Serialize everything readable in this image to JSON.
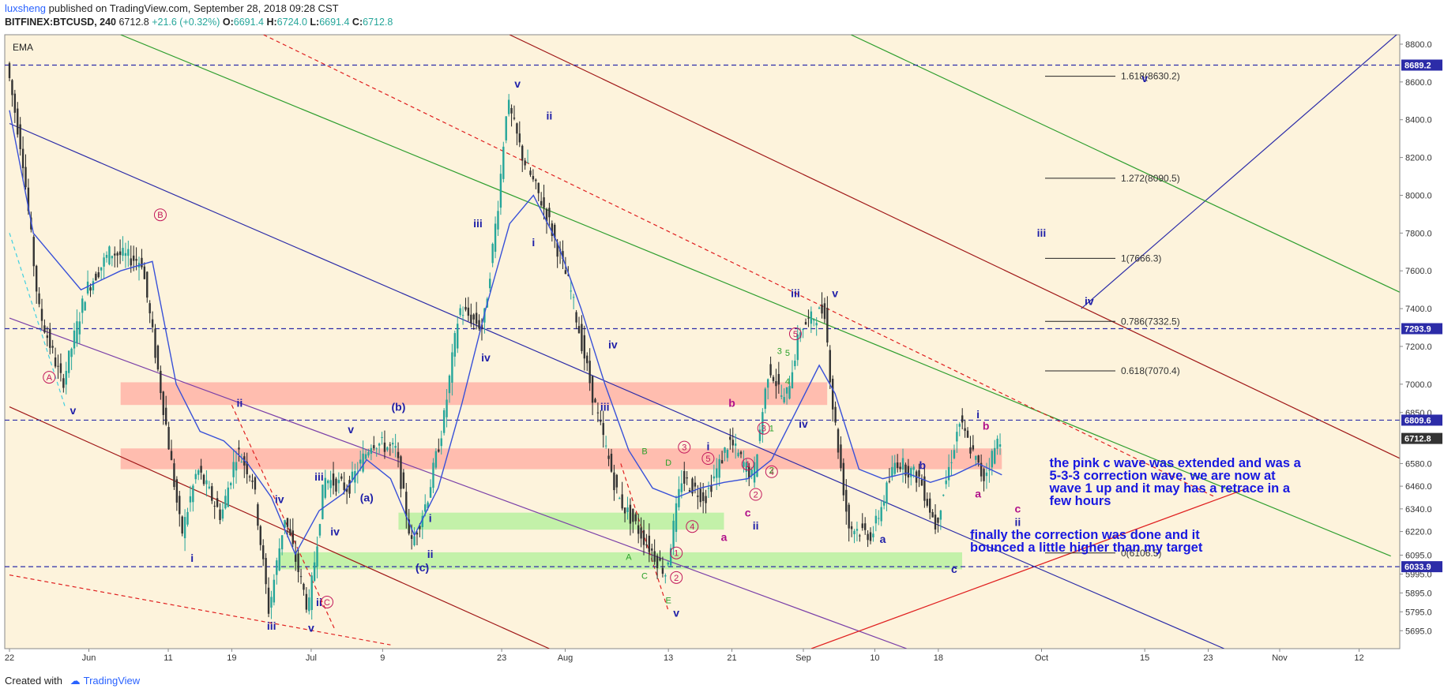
{
  "header": {
    "user": "luxsheng",
    "published": "published on TradingView.com, September 28, 2018 09:28 CST",
    "symbol": "BITFINEX:BTCUSD, 240",
    "last": "6712.8",
    "change": "+21.6 (+0.32%)",
    "o_label": "O:",
    "o": "6691.4",
    "h_label": "H:",
    "h": "6724.0",
    "l_label": "L:",
    "l": "6691.4",
    "c_label": "C:",
    "c": "6712.8"
  },
  "indicator": "EMA",
  "footer": {
    "created_with": "Created with",
    "brand": "TradingView"
  },
  "colors": {
    "background": "#fdf3dc",
    "price_up": "#26a69a",
    "ema": "#3850d8",
    "wave_label": "#1f1fa8",
    "pink": "#c2185b",
    "zone_red": "#ffb3a7",
    "zone_green": "#b8f0a0"
  },
  "chart_data": {
    "type": "candlestick",
    "title": "BITFINEX:BTCUSD, 240",
    "ylim": [
      5600,
      8850
    ],
    "x_ticks": [
      "22",
      "Jun",
      "11",
      "19",
      "Jul",
      "9",
      "23",
      "Aug",
      "13",
      "21",
      "Sep",
      "10",
      "18",
      "Oct",
      "15",
      "23",
      "Nov",
      "12"
    ],
    "x_tick_index": [
      0,
      10,
      20,
      28,
      38,
      47,
      62,
      70,
      83,
      91,
      100,
      109,
      117,
      130,
      143,
      151,
      160,
      170
    ],
    "y_ticks": [
      8800,
      8600,
      8400,
      8200,
      8000,
      7800,
      7600,
      7400,
      7200,
      7000,
      6850,
      6580,
      6460,
      6340,
      6220,
      6095,
      5995,
      5895,
      5795,
      5695
    ],
    "y_tick_labels": [
      "8800.0",
      "8600.0",
      "8400.0",
      "8200.0",
      "8000.0",
      "7800.0",
      "7600.0",
      "7400.0",
      "7200.0",
      "7000.0",
      "6850.0",
      "6580.0",
      "6460.0",
      "6340.0",
      "6220.0",
      "6095.0",
      "5995.0",
      "5895.0",
      "5795.0",
      "5695.0"
    ],
    "price_path": [
      [
        0,
        8700
      ],
      [
        2,
        8200
      ],
      [
        4,
        7400
      ],
      [
        7,
        7000
      ],
      [
        10,
        7500
      ],
      [
        13,
        7700
      ],
      [
        17,
        7650
      ],
      [
        20,
        6800
      ],
      [
        22,
        6200
      ],
      [
        24,
        6550
      ],
      [
        27,
        6300
      ],
      [
        29,
        6650
      ],
      [
        31,
        6500
      ],
      [
        33,
        5800
      ],
      [
        35,
        6300
      ],
      [
        38,
        5800
      ],
      [
        40,
        6500
      ],
      [
        43,
        6450
      ],
      [
        46,
        6700
      ],
      [
        49,
        6650
      ],
      [
        51,
        6150
      ],
      [
        53,
        6400
      ],
      [
        55,
        6800
      ],
      [
        57,
        7400
      ],
      [
        60,
        7300
      ],
      [
        62,
        8000
      ],
      [
        63,
        8500
      ],
      [
        65,
        8200
      ],
      [
        68,
        7900
      ],
      [
        71,
        7500
      ],
      [
        74,
        6900
      ],
      [
        77,
        6400
      ],
      [
        80,
        6200
      ],
      [
        83,
        6000
      ],
      [
        85,
        6500
      ],
      [
        88,
        6400
      ],
      [
        91,
        6700
      ],
      [
        94,
        6500
      ],
      [
        96,
        7100
      ],
      [
        98,
        6900
      ],
      [
        100,
        7300
      ],
      [
        103,
        7400
      ],
      [
        104,
        6900
      ],
      [
        106,
        6250
      ],
      [
        109,
        6200
      ],
      [
        112,
        6600
      ],
      [
        115,
        6500
      ],
      [
        117,
        6250
      ],
      [
        120,
        6800
      ],
      [
        123,
        6500
      ],
      [
        125,
        6720
      ]
    ],
    "ema_path": [
      [
        0,
        8450
      ],
      [
        3,
        7800
      ],
      [
        6,
        7650
      ],
      [
        9,
        7500
      ],
      [
        14,
        7600
      ],
      [
        18,
        7650
      ],
      [
        21,
        7000
      ],
      [
        24,
        6750
      ],
      [
        27,
        6700
      ],
      [
        30,
        6580
      ],
      [
        33,
        6400
      ],
      [
        36,
        6100
      ],
      [
        39,
        6330
      ],
      [
        42,
        6420
      ],
      [
        45,
        6600
      ],
      [
        48,
        6500
      ],
      [
        51,
        6200
      ],
      [
        54,
        6450
      ],
      [
        57,
        6900
      ],
      [
        60,
        7400
      ],
      [
        63,
        7850
      ],
      [
        66,
        8000
      ],
      [
        69,
        7750
      ],
      [
        72,
        7400
      ],
      [
        75,
        7000
      ],
      [
        78,
        6650
      ],
      [
        81,
        6450
      ],
      [
        84,
        6400
      ],
      [
        87,
        6450
      ],
      [
        90,
        6480
      ],
      [
        93,
        6500
      ],
      [
        96,
        6600
      ],
      [
        99,
        6850
      ],
      [
        102,
        7100
      ],
      [
        104,
        6950
      ],
      [
        107,
        6550
      ],
      [
        110,
        6500
      ],
      [
        113,
        6530
      ],
      [
        116,
        6480
      ],
      [
        119,
        6520
      ],
      [
        122,
        6580
      ],
      [
        125,
        6520
      ]
    ],
    "horizontal_levels": [
      {
        "price": 8689.2,
        "label": "8689.2"
      },
      {
        "price": 7293.9,
        "label": "7293.9"
      },
      {
        "price": 6809.6,
        "label": "6809.6"
      },
      {
        "price": 6033.9,
        "label": "6033.9"
      }
    ],
    "last_price_label": "6712.8",
    "fib_levels": [
      {
        "price": 8630.2,
        "label": "1.618(8630.2)"
      },
      {
        "price": 8090.5,
        "label": "1.272(8090.5)"
      },
      {
        "price": 7666.3,
        "label": "1(7666.3)"
      },
      {
        "price": 7332.5,
        "label": "0.786(7332.5)"
      },
      {
        "price": 7070.4,
        "label": "0.618(7070.4)"
      },
      {
        "price": 6106.5,
        "label": "0(6106.5)"
      }
    ],
    "zones": [
      {
        "color": "red",
        "x0": 14,
        "x1": 103,
        "y0": 6890,
        "y1": 7010
      },
      {
        "color": "red",
        "x0": 14,
        "x1": 125,
        "y0": 6550,
        "y1": 6660
      },
      {
        "color": "green",
        "x0": 49,
        "x1": 90,
        "y0": 6230,
        "y1": 6320
      },
      {
        "color": "green",
        "x0": 34,
        "x1": 120,
        "y0": 6020,
        "y1": 6110
      }
    ],
    "channels": [
      {
        "color": "blue",
        "p1": [
          0,
          8380
        ],
        "p2": [
          153,
          5600
        ]
      },
      {
        "color": "blue",
        "p1": [
          135,
          7400
        ],
        "p2": [
          175,
          8860
        ]
      },
      {
        "color": "green",
        "p1": [
          14,
          8850
        ],
        "p2": [
          174,
          6090
        ]
      },
      {
        "color": "green",
        "p1": [
          106,
          8850
        ],
        "p2": [
          177,
          7450
        ]
      },
      {
        "color": "darkred",
        "p1": [
          63,
          8850
        ],
        "p2": [
          177,
          6570
        ]
      },
      {
        "color": "darkred",
        "p1": [
          0,
          6880
        ],
        "p2": [
          68,
          5600
        ]
      },
      {
        "color": "purple",
        "p1": [
          0,
          7350
        ],
        "p2": [
          113,
          5600
        ]
      },
      {
        "color": "red",
        "p1": [
          101,
          5600
        ],
        "p2": [
          156,
          6450
        ]
      }
    ],
    "dashed_trends": [
      {
        "color": "red",
        "p1": [
          32,
          8850
        ],
        "p2": [
          152,
          6400
        ]
      },
      {
        "color": "red",
        "p1": [
          28,
          6890
        ],
        "p2": [
          41,
          5700
        ]
      },
      {
        "color": "red",
        "p1": [
          0,
          5990
        ],
        "p2": [
          48,
          5620
        ]
      },
      {
        "color": "cyan",
        "p1": [
          0,
          7800
        ],
        "p2": [
          7,
          6880
        ]
      },
      {
        "color": "red",
        "p1": [
          77,
          6580
        ],
        "p2": [
          83,
          5800
        ]
      }
    ],
    "wave_labels": [
      {
        "i": 8,
        "price": 6840,
        "text": "v"
      },
      {
        "i": 23,
        "price": 6060,
        "text": "i"
      },
      {
        "i": 29,
        "price": 6880,
        "text": "ii"
      },
      {
        "i": 34,
        "price": 6370,
        "text": "iv"
      },
      {
        "i": 33,
        "price": 5700,
        "text": "iii"
      },
      {
        "i": 38,
        "price": 5690,
        "text": "v"
      },
      {
        "i": 39,
        "price": 5825,
        "text": "ii"
      },
      {
        "i": 39,
        "price": 6490,
        "text": "iii"
      },
      {
        "i": 41,
        "price": 6200,
        "text": "iv"
      },
      {
        "i": 43,
        "price": 6740,
        "text": "v"
      },
      {
        "i": 45,
        "price": 6380,
        "text": "(a)"
      },
      {
        "i": 49,
        "price": 6860,
        "text": "(b)"
      },
      {
        "i": 52,
        "price": 6010,
        "text": "(c)"
      },
      {
        "i": 53,
        "price": 6080,
        "text": "ii"
      },
      {
        "i": 53,
        "price": 6270,
        "text": "i"
      },
      {
        "i": 60,
        "price": 7120,
        "text": "iv"
      },
      {
        "i": 59,
        "price": 7830,
        "text": "iii"
      },
      {
        "i": 66,
        "price": 7730,
        "text": "i"
      },
      {
        "i": 64,
        "price": 8570,
        "text": "v"
      },
      {
        "i": 68,
        "price": 8400,
        "text": "ii"
      },
      {
        "i": 75,
        "price": 6860,
        "text": "iii"
      },
      {
        "i": 76,
        "price": 7190,
        "text": "iv"
      },
      {
        "i": 84,
        "price": 5770,
        "text": "v"
      },
      {
        "i": 88,
        "price": 6650,
        "text": "i"
      },
      {
        "i": 94,
        "price": 6230,
        "text": "ii"
      },
      {
        "i": 99,
        "price": 7460,
        "text": "iii"
      },
      {
        "i": 104,
        "price": 7460,
        "text": "v"
      },
      {
        "i": 100,
        "price": 6770,
        "text": "iv"
      },
      {
        "i": 110,
        "price": 6160,
        "text": "a"
      },
      {
        "i": 115,
        "price": 6550,
        "text": "b"
      },
      {
        "i": 119,
        "price": 6000,
        "text": "c"
      },
      {
        "i": 122,
        "price": 6820,
        "text": "i"
      },
      {
        "i": 127,
        "price": 6250,
        "text": "ii"
      },
      {
        "i": 143,
        "price": 8600,
        "text": "v"
      },
      {
        "i": 130,
        "price": 7780,
        "text": "iii"
      },
      {
        "i": 136,
        "price": 7420,
        "text": "iv"
      }
    ],
    "pink_letters": [
      {
        "i": 91,
        "price": 6880,
        "text": "b"
      },
      {
        "i": 93,
        "price": 6300,
        "text": "c"
      },
      {
        "i": 90,
        "price": 6170,
        "text": "a"
      },
      {
        "i": 123,
        "price": 6760,
        "text": "b"
      },
      {
        "i": 122,
        "price": 6400,
        "text": "a"
      },
      {
        "i": 127,
        "price": 6320,
        "text": "c"
      }
    ],
    "circled_labels": [
      {
        "i": 19,
        "price": 7880,
        "text": "B"
      },
      {
        "i": 5,
        "price": 7020,
        "text": "A"
      },
      {
        "i": 40,
        "price": 5830,
        "text": "C"
      },
      {
        "i": 84,
        "price": 6090,
        "text": "1"
      },
      {
        "i": 84,
        "price": 5960,
        "text": "2"
      },
      {
        "i": 85,
        "price": 6650,
        "text": "3"
      },
      {
        "i": 86,
        "price": 6230,
        "text": "4"
      },
      {
        "i": 88,
        "price": 6590,
        "text": "5"
      },
      {
        "i": 93,
        "price": 6560,
        "text": "1"
      },
      {
        "i": 94,
        "price": 6400,
        "text": "2"
      },
      {
        "i": 95,
        "price": 6750,
        "text": "3"
      },
      {
        "i": 96,
        "price": 6520,
        "text": "4"
      },
      {
        "i": 99,
        "price": 7250,
        "text": "5"
      }
    ],
    "small_green_labels": [
      {
        "i": 80,
        "price": 6630,
        "text": "B"
      },
      {
        "i": 83,
        "price": 6570,
        "text": "D"
      },
      {
        "i": 78,
        "price": 6070,
        "text": "A"
      },
      {
        "i": 80,
        "price": 5970,
        "text": "C"
      },
      {
        "i": 83,
        "price": 5840,
        "text": "E"
      },
      {
        "i": 97,
        "price": 7160,
        "text": "3"
      },
      {
        "i": 98,
        "price": 7150,
        "text": "5"
      },
      {
        "i": 98,
        "price": 7000,
        "text": "4"
      },
      {
        "i": 96,
        "price": 6750,
        "text": "1"
      },
      {
        "i": 96,
        "price": 6530,
        "text": "2"
      }
    ],
    "annotations": [
      {
        "i": 131,
        "price": 6560,
        "lines": [
          "the pink c wave was extended and was a",
          "5-3-3 correction wave. we are now at",
          "wave 1 up and it may has a retrace in a",
          "few hours"
        ]
      },
      {
        "i": 121,
        "price": 6180,
        "lines": [
          "finally the correction was done and it",
          "bounced a little higher than my target"
        ]
      }
    ]
  }
}
